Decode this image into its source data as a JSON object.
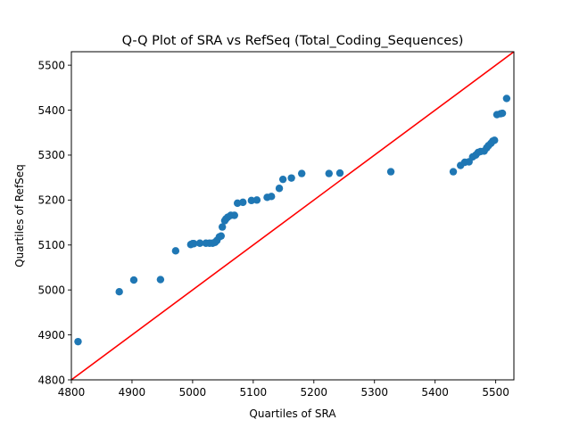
{
  "chart_data": {
    "type": "scatter",
    "title": "Q-Q Plot of SRA vs RefSeq (Total_Coding_Sequences)",
    "xlabel": "Quartiles of SRA",
    "ylabel": "Quartiles of RefSeq",
    "xlim": [
      4800,
      5530
    ],
    "ylim": [
      4800,
      5530
    ],
    "xticks": [
      4800,
      4900,
      5000,
      5100,
      5200,
      5300,
      5400,
      5500
    ],
    "yticks": [
      4800,
      4900,
      5000,
      5100,
      5200,
      5300,
      5400,
      5500
    ],
    "grid": false,
    "point_color": "#1f77b4",
    "reference_line": {
      "type": "y=x",
      "color": "#ff0000"
    },
    "points": [
      [
        4811,
        4885
      ],
      [
        4879,
        4996
      ],
      [
        4903,
        5022
      ],
      [
        4947,
        5023
      ],
      [
        4972,
        5087
      ],
      [
        4997,
        5101
      ],
      [
        5000,
        5103
      ],
      [
        5002,
        5103
      ],
      [
        5012,
        5104
      ],
      [
        5022,
        5104
      ],
      [
        5028,
        5104
      ],
      [
        5033,
        5104
      ],
      [
        5037,
        5106
      ],
      [
        5040,
        5110
      ],
      [
        5044,
        5118
      ],
      [
        5047,
        5120
      ],
      [
        5049,
        5140
      ],
      [
        5053,
        5154
      ],
      [
        5055,
        5158
      ],
      [
        5058,
        5162
      ],
      [
        5063,
        5166
      ],
      [
        5069,
        5166
      ],
      [
        5074,
        5193
      ],
      [
        5083,
        5195
      ],
      [
        5097,
        5199
      ],
      [
        5106,
        5200
      ],
      [
        5123,
        5206
      ],
      [
        5130,
        5208
      ],
      [
        5143,
        5226
      ],
      [
        5149,
        5246
      ],
      [
        5163,
        5249
      ],
      [
        5180,
        5259
      ],
      [
        5225,
        5259
      ],
      [
        5243,
        5260
      ],
      [
        5327,
        5263
      ],
      [
        5430,
        5263
      ],
      [
        5442,
        5277
      ],
      [
        5449,
        5284
      ],
      [
        5456,
        5285
      ],
      [
        5462,
        5296
      ],
      [
        5467,
        5300
      ],
      [
        5471,
        5306
      ],
      [
        5475,
        5308
      ],
      [
        5481,
        5309
      ],
      [
        5485,
        5316
      ],
      [
        5488,
        5321
      ],
      [
        5492,
        5326
      ],
      [
        5495,
        5331
      ],
      [
        5498,
        5333
      ],
      [
        5502,
        5390
      ],
      [
        5508,
        5392
      ],
      [
        5511,
        5393
      ],
      [
        5518,
        5426
      ]
    ]
  }
}
